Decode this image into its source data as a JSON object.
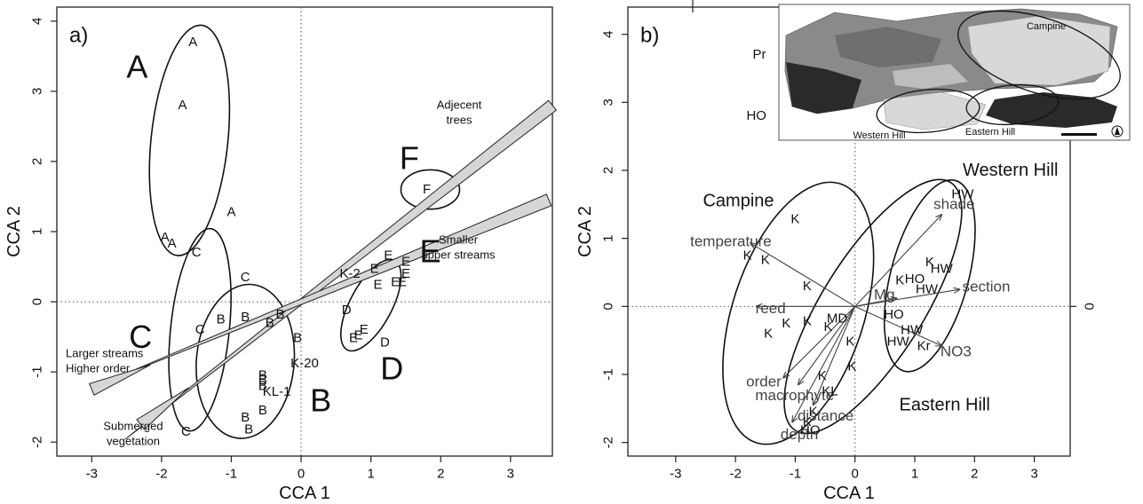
{
  "chart_data": [
    {
      "type": "scatter",
      "panel_label": "a)",
      "xlabel": "CCA 1",
      "ylabel": "CCA 2",
      "xlim": [
        -3.5,
        3.6
      ],
      "ylim": [
        -2.2,
        4.2
      ],
      "xticks": [
        -3,
        -2,
        -1,
        0,
        1,
        2,
        3
      ],
      "yticks": [
        -2,
        -1,
        0,
        1,
        2,
        3,
        4
      ],
      "points": [
        {
          "label": "A",
          "x": -1.55,
          "y": 3.7
        },
        {
          "label": "A",
          "x": -1.7,
          "y": 2.8
        },
        {
          "label": "A",
          "x": -1.0,
          "y": 1.28
        },
        {
          "label": "A",
          "x": -1.95,
          "y": 0.92
        },
        {
          "label": "A",
          "x": -1.85,
          "y": 0.83
        },
        {
          "label": "C",
          "x": -1.5,
          "y": 0.7
        },
        {
          "label": "C",
          "x": -0.8,
          "y": 0.35
        },
        {
          "label": "C",
          "x": -1.45,
          "y": -0.4
        },
        {
          "label": "C",
          "x": -1.65,
          "y": -1.85
        },
        {
          "label": "B",
          "x": -1.15,
          "y": -0.25
        },
        {
          "label": "B",
          "x": -0.8,
          "y": -0.22
        },
        {
          "label": "B",
          "x": -0.45,
          "y": -0.3
        },
        {
          "label": "B",
          "x": -0.3,
          "y": -0.18
        },
        {
          "label": "B",
          "x": -0.05,
          "y": -0.52
        },
        {
          "label": "B",
          "x": -0.55,
          "y": -1.05
        },
        {
          "label": "B",
          "x": -0.55,
          "y": -1.12
        },
        {
          "label": "B",
          "x": -0.55,
          "y": -1.2
        },
        {
          "label": "B",
          "x": -0.55,
          "y": -1.55
        },
        {
          "label": "B",
          "x": -0.8,
          "y": -1.65
        },
        {
          "label": "B",
          "x": -0.75,
          "y": -1.82
        },
        {
          "label": "K-20",
          "x": 0.05,
          "y": -0.88
        },
        {
          "label": "KL-1",
          "x": -0.35,
          "y": -1.28
        },
        {
          "label": "K-2",
          "x": 0.7,
          "y": 0.4
        },
        {
          "label": "E",
          "x": 1.25,
          "y": 0.66
        },
        {
          "label": "E",
          "x": 1.05,
          "y": 0.47
        },
        {
          "label": "E",
          "x": 1.5,
          "y": 0.57
        },
        {
          "label": "E",
          "x": 1.5,
          "y": 0.4
        },
        {
          "label": "E",
          "x": 1.1,
          "y": 0.24
        },
        {
          "label": "E",
          "x": 1.35,
          "y": 0.28
        },
        {
          "label": "E",
          "x": 1.45,
          "y": 0.28
        },
        {
          "label": "D",
          "x": 0.65,
          "y": -0.12
        },
        {
          "label": "E",
          "x": 0.9,
          "y": -0.4
        },
        {
          "label": "E",
          "x": 0.82,
          "y": -0.48
        },
        {
          "label": "E",
          "x": 0.75,
          "y": -0.52
        },
        {
          "label": "D",
          "x": 1.2,
          "y": -0.58
        },
        {
          "label": "F",
          "x": 1.8,
          "y": 1.6
        }
      ],
      "group_labels": [
        {
          "label": "A",
          "x": -2.35,
          "y": 3.35
        },
        {
          "label": "C",
          "x": -2.3,
          "y": -0.5
        },
        {
          "label": "B",
          "x": 0.28,
          "y": -1.4
        },
        {
          "label": "D",
          "x": 1.3,
          "y": -0.95
        },
        {
          "label": "E",
          "x": 1.85,
          "y": 0.72
        },
        {
          "label": "F",
          "x": 1.55,
          "y": 2.05
        }
      ],
      "ellipses": [
        {
          "group": "A",
          "cx": -1.6,
          "cy": 2.3,
          "rx": 0.55,
          "ry": 1.65,
          "angle": 6
        },
        {
          "group": "C",
          "cx": -1.45,
          "cy": -0.4,
          "rx": 0.42,
          "ry": 1.45,
          "angle": 6
        },
        {
          "group": "B",
          "cx": -0.8,
          "cy": -0.85,
          "rx": 0.7,
          "ry": 1.1,
          "angle": 5
        },
        {
          "group": "D",
          "cx": 1.0,
          "cy": -0.05,
          "rx": 0.3,
          "ry": 0.72,
          "angle": 28
        },
        {
          "group": "F",
          "cx": 1.85,
          "cy": 1.6,
          "rx": 0.42,
          "ry": 0.28,
          "angle": 0
        }
      ],
      "arrows": [
        {
          "label": "Adjecent\ntrees",
          "x": 3.6,
          "y": 2.8,
          "tail": -0.7
        },
        {
          "label": "Smaller\nupper streams",
          "x": 3.55,
          "y": 1.45,
          "tail": -0.75
        },
        {
          "label": "Larger streams\nHigher order",
          "x": -3.0,
          "y": -1.25,
          "tail": 0.72
        },
        {
          "label": "Submerged\nvegetation",
          "x": -2.3,
          "y": -1.75,
          "tail": 0.7
        }
      ]
    },
    {
      "type": "scatter",
      "panel_label": "b)",
      "xlabel": "CCA 1",
      "ylabel": "CCA 2",
      "right_tick": "0",
      "xlim": [
        -3.8,
        3.6
      ],
      "ylim": [
        -2.2,
        4.4
      ],
      "xticks": [
        -3,
        -2,
        -1,
        0,
        1,
        2,
        3
      ],
      "yticks": [
        -2,
        -1,
        0,
        1,
        2,
        3,
        4
      ],
      "points": [
        {
          "label": "Pr",
          "x": -1.6,
          "y": 3.7
        },
        {
          "label": "HO",
          "x": -1.65,
          "y": 2.8
        },
        {
          "label": "K",
          "x": -1.0,
          "y": 1.28
        },
        {
          "label": "K",
          "x": -1.8,
          "y": 0.75
        },
        {
          "label": "K",
          "x": -1.5,
          "y": 0.68
        },
        {
          "label": "K",
          "x": -0.8,
          "y": 0.3
        },
        {
          "label": "K",
          "x": -1.45,
          "y": -0.4
        },
        {
          "label": "K",
          "x": -1.15,
          "y": -0.25
        },
        {
          "label": "K",
          "x": -0.8,
          "y": -0.22
        },
        {
          "label": "K",
          "x": -0.45,
          "y": -0.3
        },
        {
          "label": "K",
          "x": -0.08,
          "y": -0.52
        },
        {
          "label": "K",
          "x": -0.05,
          "y": -0.88
        },
        {
          "label": "K",
          "x": -0.55,
          "y": -1.02
        },
        {
          "label": "K",
          "x": -0.7,
          "y": -1.55
        },
        {
          "label": "K",
          "x": -0.8,
          "y": -1.7
        },
        {
          "label": "K",
          "x": 0.75,
          "y": 0.38
        },
        {
          "label": "K",
          "x": 1.25,
          "y": 0.65
        },
        {
          "label": "HO",
          "x": -0.75,
          "y": -1.82
        },
        {
          "label": "HO",
          "x": 1.0,
          "y": 0.4
        },
        {
          "label": "HO",
          "x": 0.65,
          "y": -0.12
        },
        {
          "label": "HW",
          "x": 1.45,
          "y": 0.55
        },
        {
          "label": "HW",
          "x": 1.2,
          "y": 0.25
        },
        {
          "label": "HW",
          "x": 0.95,
          "y": -0.35
        },
        {
          "label": "HW",
          "x": 0.72,
          "y": -0.52
        },
        {
          "label": "HW",
          "x": 1.8,
          "y": 1.65
        },
        {
          "label": "Kr",
          "x": 1.15,
          "y": -0.58
        },
        {
          "label": "KL",
          "x": -0.42,
          "y": -1.25
        },
        {
          "label": "MD",
          "x": -0.3,
          "y": -0.18
        }
      ],
      "group_labels": [
        {
          "label": "Campine",
          "x": -1.95,
          "y": 1.55
        },
        {
          "label": "Western Hill",
          "x": 2.6,
          "y": 2.0
        },
        {
          "label": "Eastern Hill",
          "x": 1.5,
          "y": -1.45
        }
      ],
      "ellipses": [
        {
          "group": "Campine",
          "cx": -0.95,
          "cy": -0.1,
          "rx": 1.1,
          "ry": 2.0,
          "angle": 18
        },
        {
          "group": "Western Hill",
          "cx": 1.25,
          "cy": 0.45,
          "rx": 0.65,
          "ry": 1.45,
          "angle": 15
        },
        {
          "group": "Eastern Hill",
          "cx": 0.3,
          "cy": 0.0,
          "rx": 0.85,
          "ry": 2.15,
          "angle": 32
        }
      ],
      "vectors": [
        {
          "label": "temperature",
          "x": -1.75,
          "y": 0.93
        },
        {
          "label": "shade",
          "x": 1.45,
          "y": 1.35
        },
        {
          "label": "section",
          "x": 1.75,
          "y": 0.25
        },
        {
          "label": "Mg",
          "x": 0.7,
          "y": 0.12
        },
        {
          "label": "reed",
          "x": -1.65,
          "y": 0.0
        },
        {
          "label": "NO3",
          "x": 1.45,
          "y": -0.58
        },
        {
          "label": "order",
          "x": -1.2,
          "y": -1.05
        },
        {
          "label": "macrophyte",
          "x": -0.95,
          "y": -1.15
        },
        {
          "label": "distance",
          "x": -0.7,
          "y": -1.45
        },
        {
          "label": "depth",
          "x": -1.05,
          "y": -1.7
        }
      ],
      "inset_map": {
        "labels": [
          "Campine",
          "Western Hill",
          "Eastern Hill"
        ]
      }
    }
  ]
}
